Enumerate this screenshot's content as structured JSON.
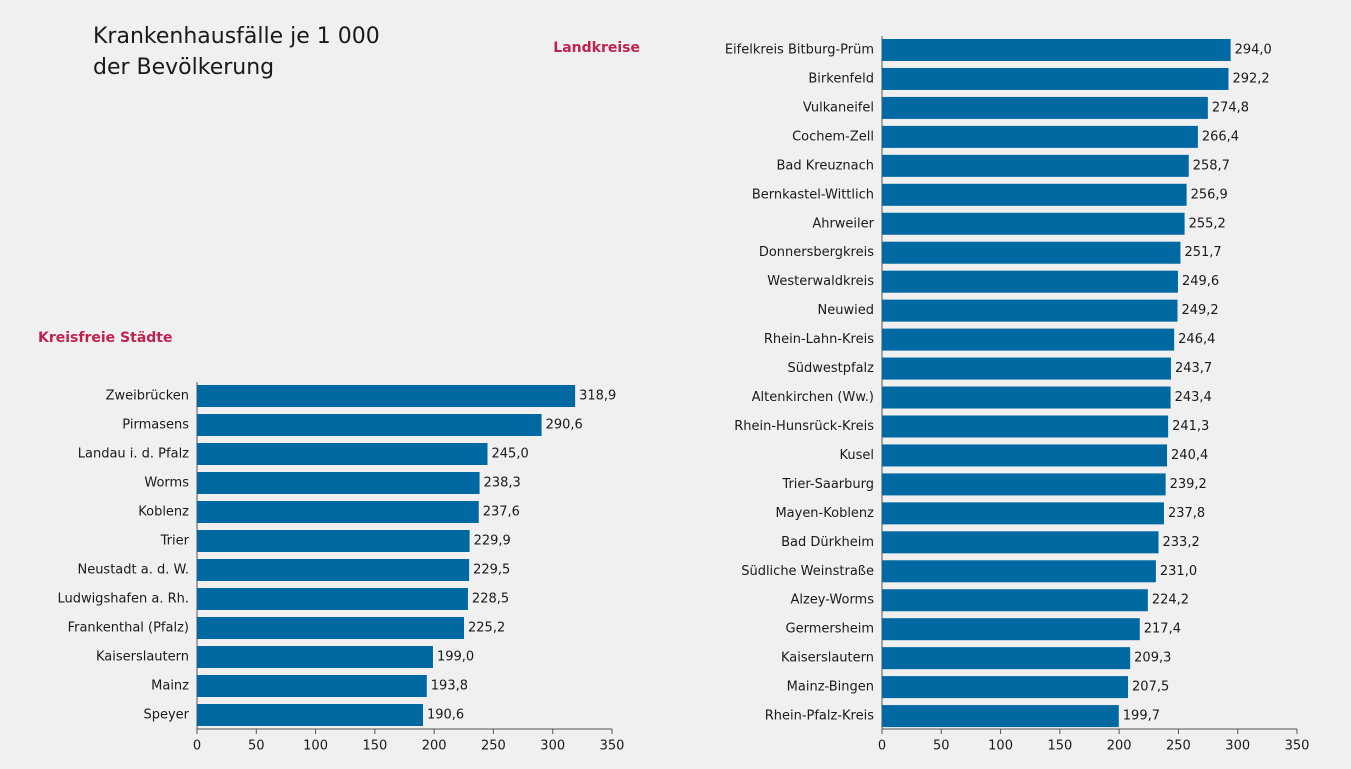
{
  "title": [
    "Krankenhausfälle je 1 000",
    "der Bevölkerung"
  ],
  "chart_data": [
    {
      "type": "barh",
      "title": "Kreisfreie Städte",
      "color": "#0069a1",
      "categories": [
        "Zweibrücken",
        "Pirmasens",
        "Landau i. d. Pfalz",
        "Worms",
        "Koblenz",
        "Trier",
        "Neustadt a. d. W.",
        "Ludwigshafen a. Rh.",
        "Frankenthal (Pfalz)",
        "Kaiserslautern",
        "Mainz",
        "Speyer"
      ],
      "values": [
        318.9,
        290.6,
        245.0,
        238.3,
        237.6,
        229.9,
        229.5,
        228.5,
        225.2,
        199.0,
        193.8,
        190.6
      ],
      "value_labels": [
        "318,9",
        "290,6",
        "245,0",
        "238,3",
        "237,6",
        "229,9",
        "229,5",
        "228,5",
        "225,2",
        "199,0",
        "193,8",
        "190,6"
      ],
      "xlim": [
        0,
        350
      ],
      "xticks": [
        0,
        50,
        100,
        150,
        200,
        250,
        300,
        350
      ]
    },
    {
      "type": "barh",
      "title": "Landkreise",
      "color": "#0069a1",
      "categories": [
        "Eifelkreis Bitburg-Prüm",
        "Birkenfeld",
        "Vulkaneifel",
        "Cochem-Zell",
        "Bad Kreuznach",
        "Bernkastel-Wittlich",
        "Ahrweiler",
        "Donnersbergkreis",
        "Westerwaldkreis",
        "Neuwied",
        "Rhein-Lahn-Kreis",
        "Südwestpfalz",
        "Altenkirchen (Ww.)",
        "Rhein-Hunsrück-Kreis",
        "Kusel",
        "Trier-Saarburg",
        "Mayen-Koblenz",
        "Bad Dürkheim",
        "Südliche Weinstraße",
        "Alzey-Worms",
        "Germersheim",
        "Kaiserslautern",
        "Mainz-Bingen",
        "Rhein-Pfalz-Kreis"
      ],
      "values": [
        294.0,
        292.2,
        274.8,
        266.4,
        258.7,
        256.9,
        255.2,
        251.7,
        249.6,
        249.2,
        246.4,
        243.7,
        243.4,
        241.3,
        240.4,
        239.2,
        237.8,
        233.2,
        231.0,
        224.2,
        217.4,
        209.3,
        207.5,
        199.7
      ],
      "value_labels": [
        "294,0",
        "292,2",
        "274,8",
        "266,4",
        "258,7",
        "256,9",
        "255,2",
        "251,7",
        "249,6",
        "249,2",
        "246,4",
        "243,7",
        "243,4",
        "241,3",
        "240,4",
        "239,2",
        "237,8",
        "233,2",
        "231,0",
        "224,2",
        "217,4",
        "209,3",
        "207,5",
        "199,7"
      ],
      "xlim": [
        0,
        350
      ],
      "xticks": [
        0,
        50,
        100,
        150,
        200,
        250,
        300,
        350
      ]
    }
  ]
}
